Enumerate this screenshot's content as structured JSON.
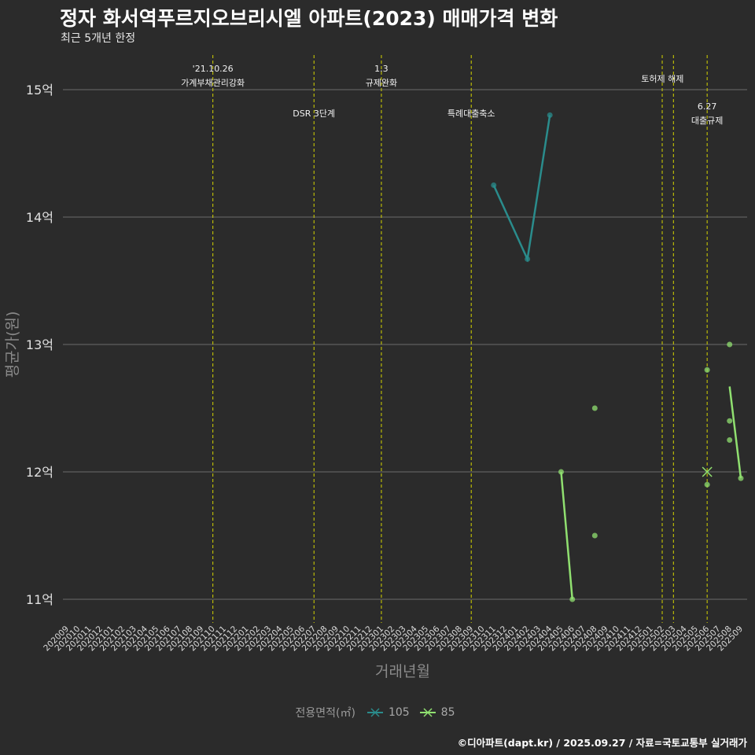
{
  "title": "정자 화서역푸르지오브리시엘 아파트(2023) 매매가격 변화",
  "subtitle": "최근 5개년 한정",
  "credit": "©디아파트(dapt.kr) / 2025.09.27 / 자료=국토교통부 실거래가",
  "colors": {
    "background": "#2b2b2b",
    "grid": "#6b6b6b",
    "event_line": "#d4d400",
    "series_105": "#2a8c8c",
    "series_85": "#90e070"
  },
  "chart_data": {
    "type": "line",
    "title": "정자 화서역푸르지오브리시엘 아파트(2023) 매매가격 변화",
    "xlabel": "거래년월",
    "ylabel": "평균가(원)",
    "ylim": [
      10.85,
      15.3
    ],
    "yticks": [
      11,
      12,
      13,
      14,
      15
    ],
    "ytick_labels": [
      "11억",
      "12억",
      "13억",
      "14억",
      "15억"
    ],
    "grid": true,
    "legend_title": "전용면적(㎡)",
    "legend_position": "bottom",
    "categories": [
      "202009",
      "202010",
      "202011",
      "202012",
      "202101",
      "202102",
      "202103",
      "202104",
      "202105",
      "202106",
      "202107",
      "202108",
      "202109",
      "202110",
      "202111",
      "202112",
      "202201",
      "202202",
      "202203",
      "202204",
      "202205",
      "202206",
      "202207",
      "202208",
      "202209",
      "202210",
      "202211",
      "202212",
      "202301",
      "202302",
      "202303",
      "202304",
      "202305",
      "202306",
      "202307",
      "202308",
      "202309",
      "202310",
      "202311",
      "202312",
      "202401",
      "202402",
      "202403",
      "202404",
      "202405",
      "202406",
      "202407",
      "202408",
      "202409",
      "202410",
      "202411",
      "202412",
      "202501",
      "202502",
      "202503",
      "202504",
      "202505",
      "202506",
      "202507",
      "202508",
      "202509"
    ],
    "events": [
      {
        "x": "202110",
        "label": [
          "'21.10.26",
          "가계부채관리강화"
        ],
        "row": 0
      },
      {
        "x": "202207",
        "label": [
          "DSR 3단계"
        ],
        "row": 1
      },
      {
        "x": "202301",
        "label": [
          "1.3",
          "규제완화"
        ],
        "row": 0
      },
      {
        "x": "202309",
        "label": [
          "특례대출축소"
        ],
        "row": 1
      },
      {
        "x": "202502",
        "label": [],
        "row": 0
      },
      {
        "x": "202503",
        "label": [
          "토허제 해제"
        ],
        "row": 0,
        "offset": -1
      },
      {
        "x": "202506",
        "label": [
          "6.27",
          "대출규제"
        ],
        "row": 2
      }
    ],
    "series": [
      {
        "name": "105",
        "line": [
          {
            "x": "202311",
            "y": 14.25
          },
          {
            "x": "202402",
            "y": 13.67
          },
          {
            "x": "202404",
            "y": 14.8
          }
        ],
        "points": [
          {
            "x": "202311",
            "y": 14.25
          },
          {
            "x": "202402",
            "y": 13.67
          },
          {
            "x": "202404",
            "y": 14.8
          }
        ]
      },
      {
        "name": "85",
        "line_segments": [
          [
            {
              "x": "202405",
              "y": 12.0
            },
            {
              "x": "202406",
              "y": 11.0
            }
          ],
          [
            {
              "x": "202508",
              "y": 12.67
            },
            {
              "x": "202509",
              "y": 11.95
            }
          ]
        ],
        "points": [
          {
            "x": "202405",
            "y": 12.0
          },
          {
            "x": "202406",
            "y": 11.0
          },
          {
            "x": "202408",
            "y": 12.5
          },
          {
            "x": "202408",
            "y": 11.5
          },
          {
            "x": "202506",
            "y": 12.8
          },
          {
            "x": "202506",
            "y": 11.9
          },
          {
            "x": "202508",
            "y": 13.0
          },
          {
            "x": "202508",
            "y": 12.4
          },
          {
            "x": "202508",
            "y": 12.25
          },
          {
            "x": "202509",
            "y": 11.95
          }
        ],
        "markers_x": [
          {
            "x": "202506",
            "y": 12.0
          }
        ]
      }
    ]
  }
}
